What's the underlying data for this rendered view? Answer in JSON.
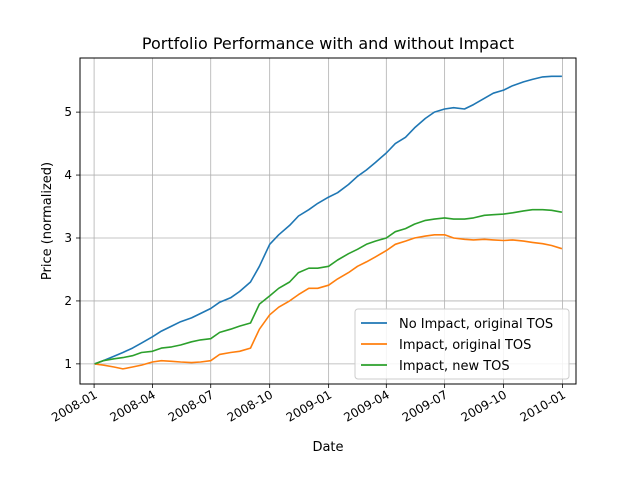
{
  "chart_data": {
    "type": "line",
    "title": "Portfolio Performance with and without Impact",
    "xlabel": "Date",
    "ylabel": "Price (normalized)",
    "x_ticks": [
      "2008-01",
      "2008-04",
      "2008-07",
      "2008-10",
      "2009-01",
      "2009-04",
      "2009-07",
      "2009-10",
      "2010-01"
    ],
    "y_ticks": [
      "1",
      "2",
      "3",
      "4",
      "5"
    ],
    "xlim": [
      "2007-12-10",
      "2010-01-22"
    ],
    "ylim": [
      0.68,
      5.86
    ],
    "grid": true,
    "legend_position": "lower-right",
    "x": [
      "2008-01-02",
      "2008-01-15",
      "2008-02-01",
      "2008-02-15",
      "2008-03-01",
      "2008-03-15",
      "2008-04-01",
      "2008-04-15",
      "2008-05-01",
      "2008-05-15",
      "2008-06-01",
      "2008-06-15",
      "2008-07-01",
      "2008-07-15",
      "2008-08-01",
      "2008-08-15",
      "2008-09-01",
      "2008-09-15",
      "2008-10-01",
      "2008-10-15",
      "2008-11-01",
      "2008-11-15",
      "2008-12-01",
      "2008-12-15",
      "2009-01-01",
      "2009-01-15",
      "2009-02-01",
      "2009-02-15",
      "2009-03-01",
      "2009-03-15",
      "2009-04-01",
      "2009-04-15",
      "2009-05-01",
      "2009-05-15",
      "2009-06-01",
      "2009-06-15",
      "2009-07-01",
      "2009-07-15",
      "2009-08-01",
      "2009-08-15",
      "2009-09-01",
      "2009-09-15",
      "2009-10-01",
      "2009-10-15",
      "2009-11-01",
      "2009-11-15",
      "2009-12-01",
      "2009-12-15",
      "2009-12-31"
    ],
    "series": [
      {
        "name": "No Impact, original TOS",
        "color": "#1f77b4",
        "values": [
          1.0,
          1.05,
          1.12,
          1.18,
          1.25,
          1.33,
          1.43,
          1.52,
          1.6,
          1.67,
          1.73,
          1.8,
          1.88,
          1.98,
          2.05,
          2.15,
          2.3,
          2.55,
          2.9,
          3.05,
          3.2,
          3.35,
          3.45,
          3.55,
          3.65,
          3.72,
          3.85,
          3.98,
          4.08,
          4.2,
          4.35,
          4.5,
          4.6,
          4.75,
          4.9,
          5.0,
          5.05,
          5.07,
          5.05,
          5.12,
          5.22,
          5.3,
          5.35,
          5.42,
          5.48,
          5.52,
          5.56,
          5.57,
          5.57
        ]
      },
      {
        "name": "Impact, original TOS",
        "color": "#ff7f0e",
        "values": [
          1.0,
          0.98,
          0.95,
          0.92,
          0.95,
          0.98,
          1.03,
          1.05,
          1.04,
          1.03,
          1.02,
          1.03,
          1.05,
          1.15,
          1.18,
          1.2,
          1.25,
          1.55,
          1.78,
          1.9,
          2.0,
          2.1,
          2.2,
          2.2,
          2.25,
          2.35,
          2.45,
          2.55,
          2.62,
          2.7,
          2.8,
          2.9,
          2.95,
          3.0,
          3.03,
          3.05,
          3.05,
          3.0,
          2.98,
          2.97,
          2.98,
          2.97,
          2.96,
          2.97,
          2.95,
          2.93,
          2.91,
          2.88,
          2.83
        ]
      },
      {
        "name": "Impact, new TOS",
        "color": "#2ca02c",
        "values": [
          1.0,
          1.05,
          1.08,
          1.1,
          1.13,
          1.18,
          1.2,
          1.25,
          1.27,
          1.3,
          1.35,
          1.38,
          1.4,
          1.5,
          1.55,
          1.6,
          1.65,
          1.95,
          2.08,
          2.2,
          2.3,
          2.45,
          2.52,
          2.52,
          2.55,
          2.65,
          2.75,
          2.82,
          2.9,
          2.95,
          3.0,
          3.1,
          3.15,
          3.22,
          3.28,
          3.3,
          3.32,
          3.3,
          3.3,
          3.32,
          3.36,
          3.37,
          3.38,
          3.4,
          3.43,
          3.45,
          3.45,
          3.44,
          3.41
        ]
      }
    ]
  }
}
